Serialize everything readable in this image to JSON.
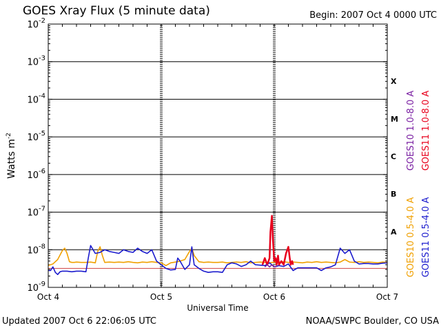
{
  "header": {
    "title": "GOES Xray Flux (5 minute data)",
    "begin_label": "Begin:",
    "begin_value": "2007 Oct 4 0000 UTC"
  },
  "footer": {
    "updated": "Updated 2007 Oct  6 22:06:05 UTC",
    "credit": "NOAA/SWPC Boulder, CO USA"
  },
  "colors": {
    "goes10_long": "#7a1fa2",
    "goes11_long": "#e8001c",
    "goes10_short": "#f0a000",
    "goes11_short": "#1a1acd",
    "reference_line": "#d04040"
  },
  "chart_data": {
    "type": "line",
    "title": "GOES Xray Flux (5 minute data)",
    "xlabel": "Universal Time",
    "ylabel": "Watts m",
    "ylabel_sup": "-2",
    "yscale": "log",
    "ylim": [
      1e-09,
      0.01
    ],
    "ytick_exponents": [
      -9,
      -8,
      -7,
      -6,
      -5,
      -4,
      -3,
      -2
    ],
    "ytick_base": "10",
    "xlim_hours": [
      0,
      72
    ],
    "x_ticks": [
      {
        "hour": 0,
        "label": "Oct 4"
      },
      {
        "hour": 24,
        "label": "Oct 5"
      },
      {
        "hour": 48,
        "label": "Oct 6"
      },
      {
        "hour": 72,
        "label": "Oct 7"
      }
    ],
    "flare_classes": [
      {
        "label": "A",
        "exponent": -7.5
      },
      {
        "label": "B",
        "exponent": -6.5
      },
      {
        "label": "C",
        "exponent": -5.5
      },
      {
        "label": "M",
        "exponent": -4.5
      },
      {
        "label": "X",
        "exponent": -3.5
      }
    ],
    "reference_level": 3.2e-09,
    "grid": "horizontal at each decade",
    "legend_right": [
      {
        "label": "GOES10 1.0-8.0 A",
        "color_key": "goes10_long"
      },
      {
        "label": "GOES11 1.0-8.0 A",
        "color_key": "goes11_long"
      },
      {
        "label": "GOES10 0.5-4.0 A",
        "color_key": "goes10_short"
      },
      {
        "label": "GOES11 0.5-4.0 A",
        "color_key": "goes11_short"
      }
    ],
    "series": [
      {
        "name": "GOES10 0.5-4.0 A",
        "color_key": "goes10_short",
        "x": [
          0,
          1,
          2,
          3,
          3.5,
          4,
          4.5,
          5,
          5.5,
          6,
          7,
          8,
          9,
          10,
          10.5,
          11,
          11.5,
          12,
          13,
          14,
          15,
          16,
          17,
          18,
          19,
          20,
          21,
          22,
          23,
          24,
          25,
          26,
          27,
          28,
          29,
          30,
          30.5,
          31,
          32,
          33,
          34,
          35,
          36,
          37,
          38,
          39,
          40,
          41,
          42,
          43,
          44,
          45,
          46,
          47,
          48,
          49,
          50,
          51,
          52,
          53,
          54,
          55,
          56,
          57,
          58,
          59,
          60,
          61,
          62,
          63,
          64,
          65,
          66,
          67,
          68,
          69,
          70,
          71,
          72
        ],
        "y": [
          3.8e-09,
          4.2e-09,
          5.5e-09,
          9.5e-09,
          1.1e-08,
          8e-09,
          4.8e-09,
          4.6e-09,
          4.6e-09,
          4.7e-09,
          4.6e-09,
          4.6e-09,
          4.7e-09,
          4.5e-09,
          9e-09,
          1.2e-08,
          7e-09,
          4.6e-09,
          4.7e-09,
          4.6e-09,
          4.7e-09,
          4.6e-09,
          4.8e-09,
          4.6e-09,
          4.5e-09,
          4.7e-09,
          4.6e-09,
          4.8e-09,
          4.6e-09,
          4.5e-09,
          3.8e-09,
          4.5e-09,
          4.7e-09,
          5e-09,
          5.5e-09,
          9e-09,
          1.1e-08,
          7e-09,
          4.8e-09,
          4.6e-09,
          4.7e-09,
          4.6e-09,
          4.6e-09,
          4.7e-09,
          4.5e-09,
          4.6e-09,
          4.7e-09,
          4.6e-09,
          4.8e-09,
          4.5e-09,
          4.6e-09,
          4.7e-09,
          4.6e-09,
          4.5e-09,
          4.7e-09,
          4.6e-09,
          4.8e-09,
          4.6e-09,
          4.7e-09,
          4.6e-09,
          4.5e-09,
          4.7e-09,
          4.6e-09,
          4.8e-09,
          4.6e-09,
          4.7e-09,
          4.6e-09,
          4.5e-09,
          4.7e-09,
          5.5e-09,
          4.7e-09,
          4.6e-09,
          4.8e-09,
          4.6e-09,
          4.7e-09,
          4.6e-09,
          4.5e-09,
          4.7e-09,
          4.6e-09
        ]
      },
      {
        "name": "GOES11 0.5-4.0 A",
        "color_key": "goes11_short",
        "x": [
          0,
          0.5,
          1,
          1.5,
          2,
          2.5,
          3,
          4,
          5,
          6,
          7,
          8,
          8.5,
          9,
          10,
          11,
          12,
          13,
          14,
          15,
          16,
          17,
          18,
          19,
          20,
          21,
          22,
          23,
          24,
          25,
          26,
          27,
          27.5,
          28,
          29,
          30,
          30.5,
          31,
          32,
          33,
          34,
          35,
          36,
          37,
          38,
          39,
          40,
          41,
          42,
          43,
          44,
          45,
          46,
          47,
          48,
          49,
          50,
          51,
          52,
          53,
          54,
          55,
          56,
          57,
          58,
          59,
          60,
          61,
          62,
          63,
          64,
          65,
          66,
          67,
          68,
          69,
          70,
          71,
          72
        ],
        "y": [
          2.8e-09,
          2.8e-09,
          3.5e-09,
          2.5e-09,
          2.2e-09,
          2.6e-09,
          2.7e-09,
          2.7e-09,
          2.6e-09,
          2.7e-09,
          2.7e-09,
          2.6e-09,
          6e-09,
          1.3e-08,
          8e-09,
          8.5e-09,
          1e-08,
          9e-09,
          8.5e-09,
          8e-09,
          1e-08,
          9e-09,
          8.5e-09,
          1.1e-08,
          9e-09,
          8e-09,
          1e-08,
          5e-09,
          4e-09,
          3.2e-09,
          2.9e-09,
          3e-09,
          6e-09,
          5e-09,
          3e-09,
          4e-09,
          1.2e-08,
          4e-09,
          3.2e-09,
          2.7e-09,
          2.5e-09,
          2.6e-09,
          2.6e-09,
          2.5e-09,
          4e-09,
          4.5e-09,
          4.2e-09,
          3.6e-09,
          4e-09,
          5e-09,
          4e-09,
          3.9e-09,
          3.8e-09,
          4.5e-09,
          3.5e-09,
          3.8e-09,
          3.6e-09,
          4.2e-09,
          2.8e-09,
          3.3e-09,
          3.3e-09,
          3.3e-09,
          3.3e-09,
          3.3e-09,
          2.8e-09,
          3.3e-09,
          3.5e-09,
          4e-09,
          1.1e-08,
          8e-09,
          1e-08,
          5e-09,
          4.2e-09,
          4.3e-09,
          4.3e-09,
          4.2e-09,
          4.2e-09,
          4.4e-09,
          4.5e-09
        ]
      },
      {
        "name": "GOES11 1.0-8.0 A",
        "color_key": "goes11_long",
        "x": [
          45.5,
          46,
          46.5,
          47,
          47.2,
          47.5,
          47.7,
          48,
          48.3,
          48.5,
          48.8,
          49,
          49.5,
          50,
          50.5,
          51,
          51.3,
          51.5,
          51.8,
          52
        ],
        "y": [
          4e-09,
          6e-09,
          4e-09,
          6e-09,
          3e-08,
          8e-08,
          2e-08,
          5e-09,
          6e-09,
          4e-09,
          7e-09,
          4e-09,
          5e-09,
          4e-09,
          8e-09,
          1.2e-08,
          6e-09,
          4e-09,
          5e-09,
          4e-09
        ]
      },
      {
        "name": "GOES10 1.0-8.0 A",
        "color_key": "goes10_long",
        "x": [
          46,
          46.5,
          47,
          47.5,
          48,
          48.5
        ],
        "y": [
          3.5e-09,
          4e-09,
          3.5e-09,
          4e-09,
          3.5e-09,
          3.6e-09
        ]
      }
    ]
  }
}
